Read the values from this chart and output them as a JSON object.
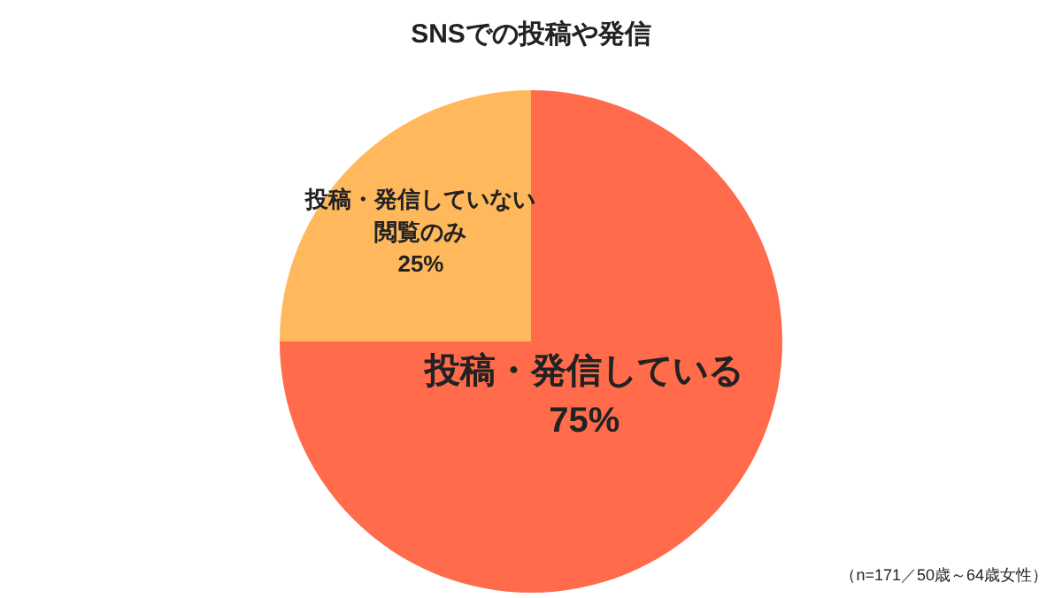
{
  "chart_data": {
    "type": "pie",
    "title": "SNSでの投稿や発信",
    "categories": [
      "投稿・発信している",
      "投稿・発信していない閲覧のみ"
    ],
    "values": [
      75,
      25
    ],
    "value_labels": [
      "75%",
      "25%"
    ],
    "colors": [
      "#ff6b4b",
      "#ffb95c"
    ],
    "annotations": [
      "（n=171／50歳～64歳女性）"
    ]
  }
}
